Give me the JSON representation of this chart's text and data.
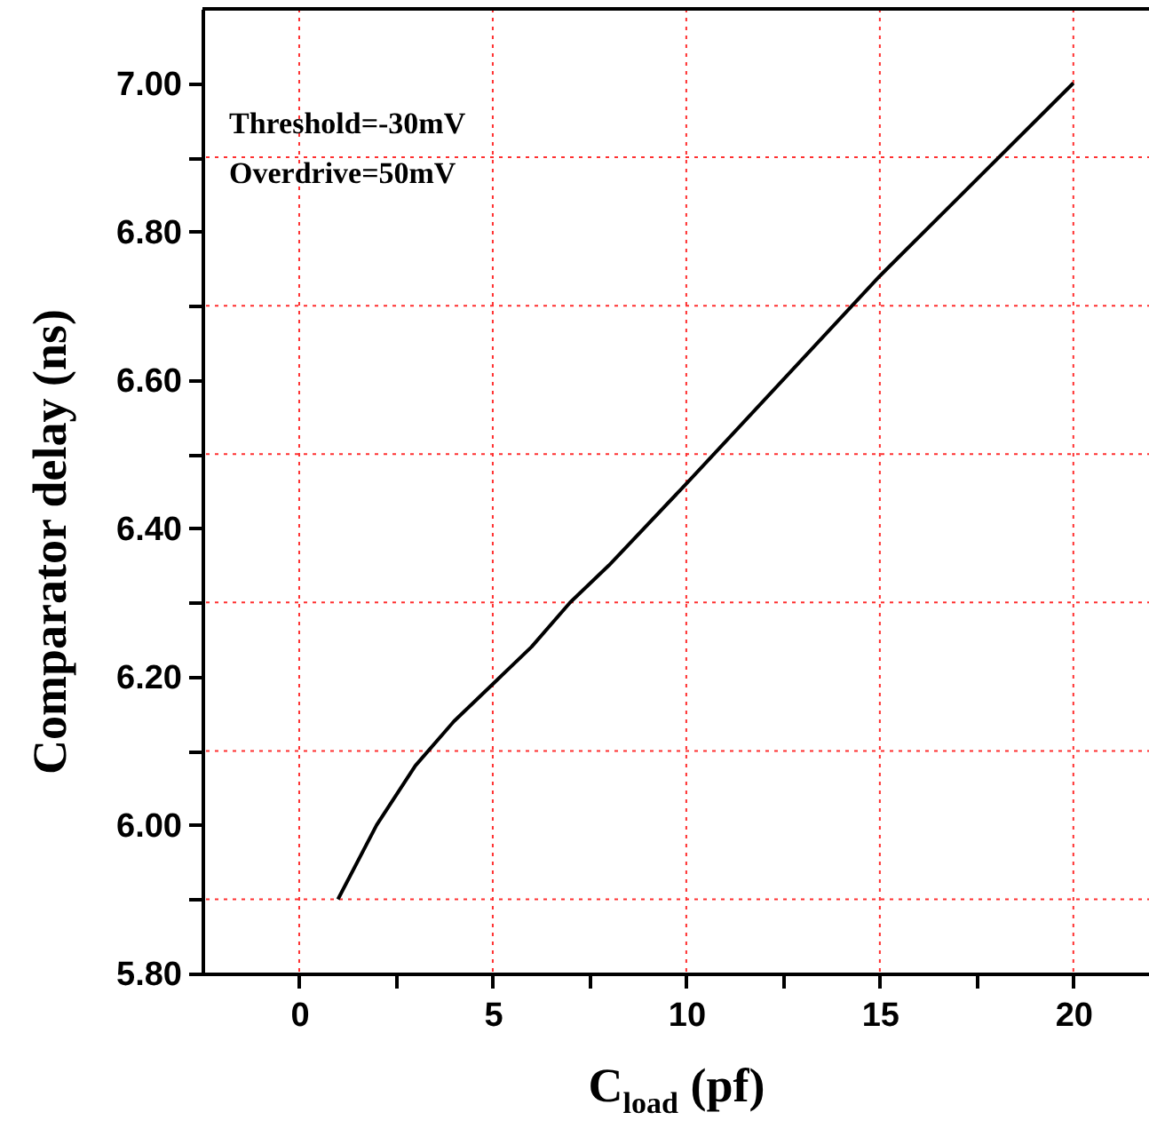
{
  "chart_data": {
    "type": "line",
    "xlabel": "C$_{load}$ (pf)",
    "ylabel": "Comparator delay (ns)",
    "annotations": [
      "Threshold=-30mV",
      "Overdrive=50mV"
    ],
    "x": [
      1,
      2,
      3,
      4,
      5,
      6,
      7,
      8,
      10,
      15,
      20
    ],
    "series": [
      {
        "color": "#000000",
        "values": [
          5.9,
          6.0,
          6.08,
          6.14,
          6.19,
          6.24,
          6.3,
          6.35,
          6.46,
          6.74,
          7.0
        ]
      }
    ],
    "xlim": [
      -2.5,
      22
    ],
    "ylim": [
      5.8,
      7.1
    ],
    "xticks": [
      0,
      {
        "value": 2.5,
        "label": null
      },
      5,
      {
        "value": 7.5,
        "label": null
      },
      10,
      {
        "value": 12.5,
        "label": null
      },
      15,
      {
        "value": 17.5,
        "label": null
      },
      20
    ],
    "yticks": [
      {
        "value": 5.8,
        "label": "5.80"
      },
      {
        "value": 5.9,
        "label": null
      },
      {
        "value": 6.0,
        "label": "6.00"
      },
      {
        "value": 6.1,
        "label": null
      },
      {
        "value": 6.2,
        "label": "6.20"
      },
      {
        "value": 6.3,
        "label": null
      },
      {
        "value": 6.4,
        "label": "6.40"
      },
      {
        "value": 6.5,
        "label": null
      },
      {
        "value": 6.6,
        "label": "6.60"
      },
      {
        "value": 6.7,
        "label": null
      },
      {
        "value": 6.8,
        "label": "6.80"
      },
      {
        "value": 6.9,
        "label": null
      },
      {
        "value": 7.0,
        "label": "7.00"
      }
    ],
    "grid": true,
    "marker": "none",
    "line_style": "solid"
  }
}
